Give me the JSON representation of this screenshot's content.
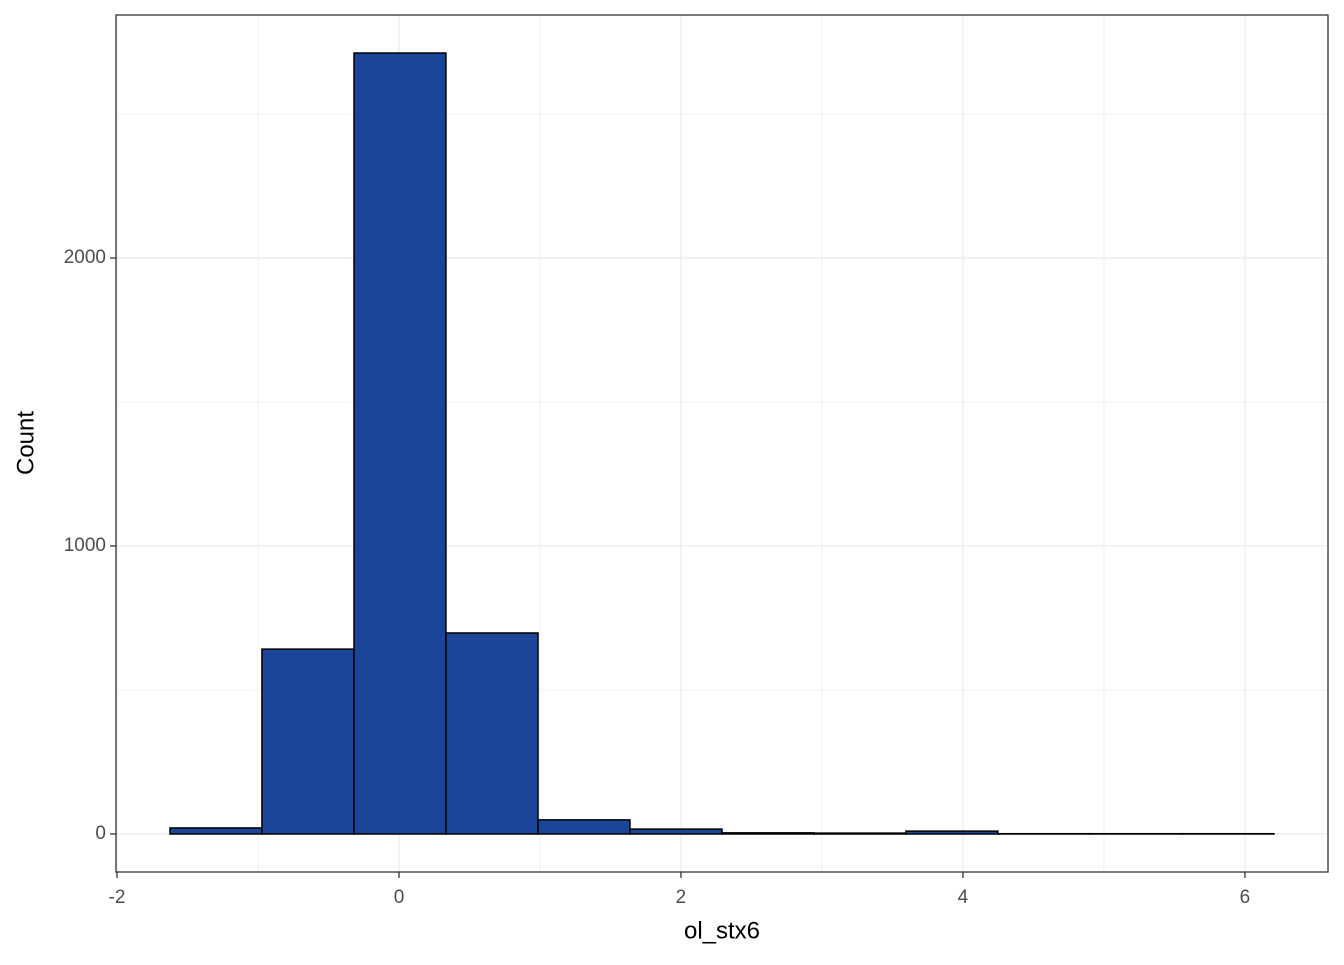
{
  "chart_data": {
    "type": "histogram",
    "x_label": "ol_stx6",
    "y_label": "Count",
    "bins": [
      -1.624,
      -0.972,
      -0.319,
      0.333,
      0.986,
      1.638,
      2.291,
      2.943,
      3.596,
      4.248,
      4.901,
      5.553,
      6.206
    ],
    "values": [
      21,
      642,
      2712,
      698,
      49,
      17,
      4,
      3,
      10,
      1,
      1,
      1
    ],
    "color": "#1a4599",
    "edge_color": "#000000",
    "xlim": [
      -2.007,
      6.589
    ],
    "ylim": [
      -132,
      2844
    ],
    "xticks": [
      -2,
      0,
      2,
      4,
      6
    ],
    "yticks": [
      0,
      1000,
      2000
    ],
    "x_minor_grid": [
      -1,
      1,
      3,
      5
    ],
    "y_minor_grid": [
      500,
      1500,
      2500
    ],
    "grid": true
  }
}
